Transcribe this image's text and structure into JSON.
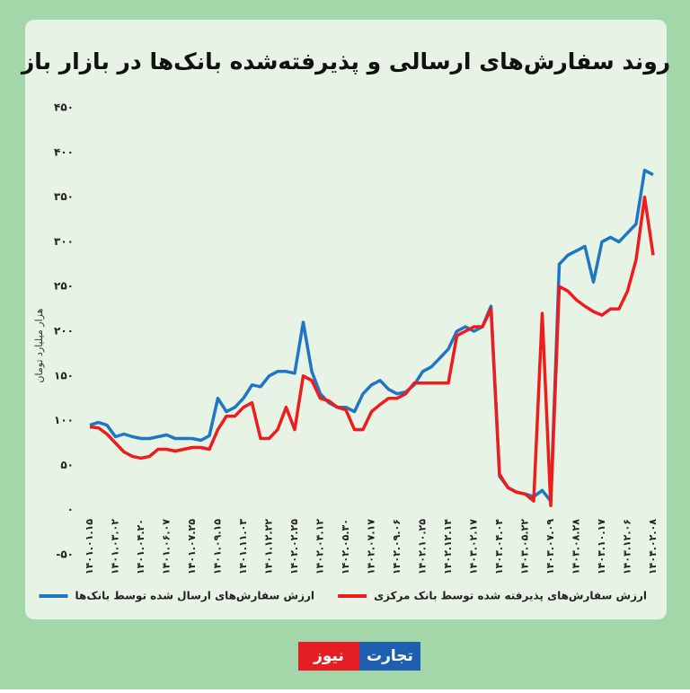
{
  "chart_data": {
    "type": "line",
    "title": "روند سفارش‌های ارسالی و پذیرفته‌شده بانک‌ها در بازار باز",
    "y_label": "هزار میلیارد تومان",
    "categories": [
      "۱۴۰۱.۰۱.۱۵",
      null,
      null,
      "۱۴۰۱.۰۳.۰۲",
      null,
      null,
      "۱۴۰۱.۰۴.۲۰",
      null,
      null,
      "۱۴۰۱.۰۶.۰۷",
      null,
      null,
      "۱۴۰۱.۰۷.۲۵",
      null,
      null,
      "۱۴۰۱.۰۹.۱۵",
      null,
      null,
      "۱۴۰۱.۱۱.۰۳",
      null,
      null,
      "۱۴۰۱.۱۲.۲۲",
      null,
      null,
      "۱۴۰۲.۰۲.۲۵",
      null,
      null,
      "۱۴۰۲.۰۴.۱۲",
      null,
      null,
      "۱۴۰۲.۰۵.۳۰",
      null,
      null,
      "۱۴۰۲.۰۷.۱۷",
      null,
      null,
      "۱۴۰۲.۰۹.۰۶",
      null,
      null,
      "۱۴۰۲.۱۰.۲۵",
      null,
      null,
      "۱۴۰۲.۱۲.۱۴",
      null,
      null,
      "۱۴۰۳.۰۲.۱۷",
      null,
      null,
      "۱۴۰۳.۰۴.۰۴",
      null,
      null,
      "۱۴۰۳.۰۵.۲۲",
      null,
      null,
      "۱۴۰۳.۰۷.۰۹",
      null,
      null,
      "۱۴۰۳.۰۸.۲۸",
      null,
      null,
      "۱۴۰۳.۱۰.۱۷",
      null,
      null,
      "۱۴۰۳.۱۲.۰۶",
      null,
      null,
      "۱۴۰۴.۰۲.۰۸"
    ],
    "series": [
      {
        "name": "ارزش سفارش‌های ارسال شده توسط بانک‌ها",
        "color": "#1f77c4",
        "values": [
          95,
          98,
          95,
          82,
          85,
          82,
          80,
          80,
          82,
          84,
          80,
          80,
          80,
          78,
          83,
          125,
          110,
          115,
          125,
          140,
          138,
          150,
          155,
          155,
          153,
          210,
          155,
          130,
          120,
          115,
          115,
          110,
          130,
          140,
          145,
          135,
          130,
          132,
          140,
          155,
          160,
          170,
          180,
          200,
          205,
          200,
          205,
          228,
          38,
          25,
          20,
          18,
          15,
          22,
          10,
          275,
          285,
          290,
          295,
          255,
          300,
          305,
          300,
          310,
          320,
          380,
          375
        ]
      },
      {
        "name": "ارزش سفارش‌های پذیرفته شده توسط بانک مرکزی",
        "color": "#ee1c1c",
        "values": [
          93,
          92,
          85,
          75,
          65,
          60,
          58,
          60,
          68,
          68,
          66,
          68,
          70,
          70,
          68,
          90,
          105,
          105,
          115,
          120,
          80,
          80,
          90,
          115,
          90,
          150,
          145,
          125,
          122,
          115,
          112,
          90,
          90,
          110,
          118,
          125,
          125,
          130,
          142,
          142,
          142,
          142,
          142,
          195,
          200,
          205,
          205,
          225,
          40,
          25,
          20,
          18,
          10,
          220,
          5,
          250,
          245,
          235,
          228,
          222,
          218,
          225,
          225,
          245,
          280,
          350,
          285
        ]
      }
    ],
    "ylim": [
      -50,
      450
    ],
    "yticks": [
      {
        "value": -50,
        "label": "-۵۰"
      },
      {
        "value": 0,
        "label": "۰"
      },
      {
        "value": 50,
        "label": "۵۰"
      },
      {
        "value": 100,
        "label": "۱۰۰"
      },
      {
        "value": 150,
        "label": "۱۵۰"
      },
      {
        "value": 200,
        "label": "۲۰۰"
      },
      {
        "value": 250,
        "label": "۲۵۰"
      },
      {
        "value": 300,
        "label": "۳۰۰"
      },
      {
        "value": 350,
        "label": "۳۵۰"
      },
      {
        "value": 400,
        "label": "۴۰۰"
      },
      {
        "value": 450,
        "label": "۴۵۰"
      }
    ]
  },
  "logo": {
    "part1": "تجارت",
    "part2": "نیوز"
  }
}
